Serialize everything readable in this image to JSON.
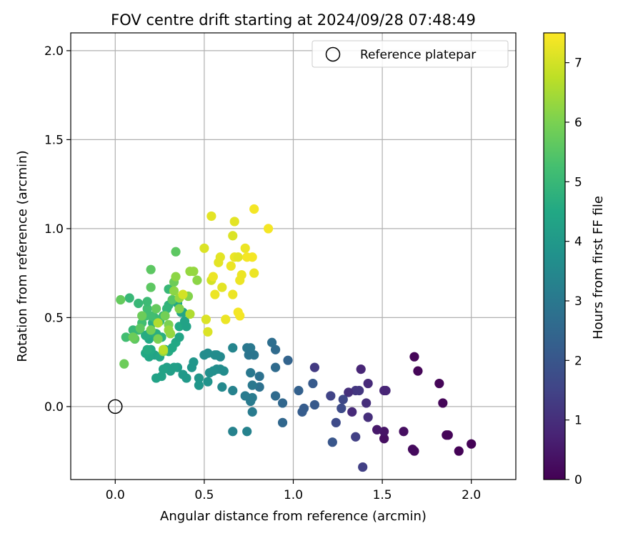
{
  "chart_data": {
    "type": "scatter",
    "title": "FOV centre drift starting at 2024/09/28 07:48:49",
    "xlabel": "Angular distance from reference (arcmin)",
    "ylabel": "Rotation from reference (arcmin)",
    "xlim": [
      -0.25,
      2.25
    ],
    "ylim": [
      -0.41,
      2.1
    ],
    "xticks": [
      "0.0",
      "0.5",
      "1.0",
      "1.5",
      "2.0"
    ],
    "yticks": [
      "0.0",
      "0.5",
      "1.0",
      "1.5",
      "2.0"
    ],
    "grid": true,
    "legend": {
      "position": "top-right",
      "label": "Reference platepar"
    },
    "reference_point": {
      "x": 0.0,
      "y": 0.0
    },
    "colorbar": {
      "label": "Hours from first FF file",
      "min": 0,
      "max": 7.5,
      "ticks": [
        "0",
        "1",
        "2",
        "3",
        "4",
        "5",
        "6",
        "7"
      ],
      "colormap": "viridis"
    },
    "series": [
      {
        "points": [
          {
            "x": 1.68,
            "y": 0.28,
            "h": 0.1
          },
          {
            "x": 1.7,
            "y": 0.2,
            "h": 0.1
          },
          {
            "x": 1.82,
            "y": 0.13,
            "h": 0.1
          },
          {
            "x": 1.84,
            "y": 0.02,
            "h": 0.1
          },
          {
            "x": 2.0,
            "y": -0.21,
            "h": 0.05
          },
          {
            "x": 1.93,
            "y": -0.25,
            "h": 0.05
          },
          {
            "x": 1.87,
            "y": -0.16,
            "h": 0.1
          },
          {
            "x": 1.86,
            "y": -0.16,
            "h": 0.1
          },
          {
            "x": 1.68,
            "y": -0.25,
            "h": 0.2
          },
          {
            "x": 1.67,
            "y": -0.24,
            "h": 0.2
          },
          {
            "x": 1.62,
            "y": -0.14,
            "h": 0.3
          },
          {
            "x": 1.51,
            "y": -0.18,
            "h": 0.3
          },
          {
            "x": 1.51,
            "y": -0.14,
            "h": 0.4
          },
          {
            "x": 1.47,
            "y": -0.13,
            "h": 0.5
          },
          {
            "x": 1.52,
            "y": 0.09,
            "h": 0.8
          },
          {
            "x": 1.51,
            "y": 0.09,
            "h": 0.8
          },
          {
            "x": 1.38,
            "y": 0.21,
            "h": 0.8
          },
          {
            "x": 1.42,
            "y": 0.13,
            "h": 0.9
          },
          {
            "x": 1.41,
            "y": 0.02,
            "h": 1.0
          },
          {
            "x": 1.42,
            "y": -0.06,
            "h": 1.0
          },
          {
            "x": 1.35,
            "y": 0.09,
            "h": 1.2
          },
          {
            "x": 1.37,
            "y": 0.09,
            "h": 1.2
          },
          {
            "x": 1.31,
            "y": 0.08,
            "h": 1.0
          },
          {
            "x": 1.33,
            "y": -0.03,
            "h": 0.9
          },
          {
            "x": 1.39,
            "y": -0.34,
            "h": 1.4
          },
          {
            "x": 1.35,
            "y": -0.17,
            "h": 1.4
          },
          {
            "x": 1.28,
            "y": 0.04,
            "h": 1.6
          },
          {
            "x": 1.27,
            "y": -0.01,
            "h": 1.7
          },
          {
            "x": 1.24,
            "y": -0.09,
            "h": 1.7
          },
          {
            "x": 1.21,
            "y": 0.06,
            "h": 1.5
          },
          {
            "x": 1.12,
            "y": 0.22,
            "h": 1.3
          },
          {
            "x": 1.22,
            "y": -0.2,
            "h": 2.0
          },
          {
            "x": 1.11,
            "y": 0.13,
            "h": 2.1
          },
          {
            "x": 1.12,
            "y": 0.01,
            "h": 2.1
          },
          {
            "x": 1.06,
            "y": -0.01,
            "h": 2.2
          },
          {
            "x": 1.05,
            "y": -0.03,
            "h": 2.2
          },
          {
            "x": 1.03,
            "y": 0.09,
            "h": 2.3
          },
          {
            "x": 0.97,
            "y": 0.26,
            "h": 2.4
          },
          {
            "x": 0.94,
            "y": 0.02,
            "h": 2.5
          },
          {
            "x": 0.94,
            "y": -0.09,
            "h": 2.5
          },
          {
            "x": 0.9,
            "y": 0.22,
            "h": 2.6
          },
          {
            "x": 0.9,
            "y": 0.32,
            "h": 2.6
          },
          {
            "x": 0.88,
            "y": 0.36,
            "h": 2.7
          },
          {
            "x": 0.9,
            "y": 0.06,
            "h": 2.6
          },
          {
            "x": 0.81,
            "y": 0.17,
            "h": 2.8
          },
          {
            "x": 0.81,
            "y": 0.11,
            "h": 2.8
          },
          {
            "x": 0.78,
            "y": 0.29,
            "h": 2.9
          },
          {
            "x": 0.76,
            "y": 0.33,
            "h": 3.0
          },
          {
            "x": 0.74,
            "y": 0.33,
            "h": 3.0
          },
          {
            "x": 0.75,
            "y": 0.29,
            "h": 2.9
          },
          {
            "x": 0.76,
            "y": 0.19,
            "h": 3.0
          },
          {
            "x": 0.77,
            "y": 0.12,
            "h": 3.0
          },
          {
            "x": 0.77,
            "y": 0.05,
            "h": 3.1
          },
          {
            "x": 0.76,
            "y": 0.03,
            "h": 3.1
          },
          {
            "x": 0.73,
            "y": 0.06,
            "h": 3.1
          },
          {
            "x": 0.77,
            "y": -0.03,
            "h": 3.1
          },
          {
            "x": 0.74,
            "y": -0.14,
            "h": 3.3
          },
          {
            "x": 0.66,
            "y": -0.14,
            "h": 3.3
          },
          {
            "x": 0.66,
            "y": 0.09,
            "h": 3.3
          },
          {
            "x": 0.66,
            "y": 0.33,
            "h": 3.4
          },
          {
            "x": 0.6,
            "y": 0.11,
            "h": 3.5
          },
          {
            "x": 0.61,
            "y": 0.2,
            "h": 3.6
          },
          {
            "x": 0.59,
            "y": 0.21,
            "h": 3.6
          },
          {
            "x": 0.59,
            "y": 0.28,
            "h": 3.5
          },
          {
            "x": 0.57,
            "y": 0.21,
            "h": 3.6
          },
          {
            "x": 0.57,
            "y": 0.29,
            "h": 3.6
          },
          {
            "x": 0.56,
            "y": 0.29,
            "h": 3.6
          },
          {
            "x": 0.55,
            "y": 0.2,
            "h": 3.7
          },
          {
            "x": 0.53,
            "y": 0.19,
            "h": 3.7
          },
          {
            "x": 0.52,
            "y": 0.3,
            "h": 3.6
          },
          {
            "x": 0.5,
            "y": 0.29,
            "h": 3.6
          },
          {
            "x": 0.52,
            "y": 0.14,
            "h": 3.8
          },
          {
            "x": 0.47,
            "y": 0.12,
            "h": 3.9
          },
          {
            "x": 0.47,
            "y": 0.16,
            "h": 3.9
          },
          {
            "x": 0.43,
            "y": 0.22,
            "h": 3.9
          },
          {
            "x": 0.44,
            "y": 0.25,
            "h": 3.9
          },
          {
            "x": 0.4,
            "y": 0.16,
            "h": 4.0
          },
          {
            "x": 0.38,
            "y": 0.18,
            "h": 4.0
          },
          {
            "x": 0.35,
            "y": 0.22,
            "h": 4.1
          },
          {
            "x": 0.33,
            "y": 0.22,
            "h": 4.2
          },
          {
            "x": 0.31,
            "y": 0.2,
            "h": 4.2
          },
          {
            "x": 0.29,
            "y": 0.22,
            "h": 4.2
          },
          {
            "x": 0.27,
            "y": 0.21,
            "h": 4.3
          },
          {
            "x": 0.26,
            "y": 0.17,
            "h": 4.3
          },
          {
            "x": 0.23,
            "y": 0.16,
            "h": 4.3
          },
          {
            "x": 0.22,
            "y": 0.29,
            "h": 4.3
          },
          {
            "x": 0.25,
            "y": 0.28,
            "h": 4.4
          },
          {
            "x": 0.19,
            "y": 0.28,
            "h": 4.4
          },
          {
            "x": 0.2,
            "y": 0.32,
            "h": 4.5
          },
          {
            "x": 0.17,
            "y": 0.3,
            "h": 4.5
          },
          {
            "x": 0.18,
            "y": 0.32,
            "h": 4.6
          },
          {
            "x": 0.19,
            "y": 0.38,
            "h": 4.5
          },
          {
            "x": 0.17,
            "y": 0.4,
            "h": 4.6
          },
          {
            "x": 0.19,
            "y": 0.41,
            "h": 4.6
          },
          {
            "x": 0.21,
            "y": 0.47,
            "h": 4.7
          },
          {
            "x": 0.23,
            "y": 0.41,
            "h": 4.7
          },
          {
            "x": 0.26,
            "y": 0.39,
            "h": 4.7
          },
          {
            "x": 0.28,
            "y": 0.32,
            "h": 4.7
          },
          {
            "x": 0.3,
            "y": 0.31,
            "h": 4.6
          },
          {
            "x": 0.32,
            "y": 0.33,
            "h": 4.5
          },
          {
            "x": 0.34,
            "y": 0.36,
            "h": 4.5
          },
          {
            "x": 0.36,
            "y": 0.39,
            "h": 4.4
          },
          {
            "x": 0.36,
            "y": 0.45,
            "h": 4.5
          },
          {
            "x": 0.37,
            "y": 0.53,
            "h": 4.4
          },
          {
            "x": 0.39,
            "y": 0.48,
            "h": 4.3
          },
          {
            "x": 0.4,
            "y": 0.45,
            "h": 4.3
          },
          {
            "x": 0.38,
            "y": 0.53,
            "h": 4.4
          },
          {
            "x": 0.35,
            "y": 0.58,
            "h": 4.5
          },
          {
            "x": 0.3,
            "y": 0.57,
            "h": 4.8
          },
          {
            "x": 0.29,
            "y": 0.55,
            "h": 4.9
          },
          {
            "x": 0.27,
            "y": 0.51,
            "h": 5.0
          },
          {
            "x": 0.25,
            "y": 0.48,
            "h": 5.0
          },
          {
            "x": 0.22,
            "y": 0.5,
            "h": 5.1
          },
          {
            "x": 0.2,
            "y": 0.51,
            "h": 5.2
          },
          {
            "x": 0.17,
            "y": 0.51,
            "h": 5.2
          },
          {
            "x": 0.15,
            "y": 0.47,
            "h": 5.2
          },
          {
            "x": 0.13,
            "y": 0.43,
            "h": 5.1
          },
          {
            "x": 0.13,
            "y": 0.58,
            "h": 5.0
          },
          {
            "x": 0.18,
            "y": 0.55,
            "h": 5.2
          },
          {
            "x": 0.18,
            "y": 0.59,
            "h": 5.1
          },
          {
            "x": 0.08,
            "y": 0.61,
            "h": 5.0
          },
          {
            "x": 0.1,
            "y": 0.43,
            "h": 5.0
          },
          {
            "x": 0.06,
            "y": 0.39,
            "h": 5.2
          },
          {
            "x": 0.1,
            "y": 0.39,
            "h": 5.3
          },
          {
            "x": 0.11,
            "y": 0.38,
            "h": 5.6
          },
          {
            "x": 0.05,
            "y": 0.24,
            "h": 5.8
          },
          {
            "x": 0.03,
            "y": 0.6,
            "h": 5.7
          },
          {
            "x": 0.1,
            "y": 0.39,
            "h": 5.8
          },
          {
            "x": 0.14,
            "y": 0.44,
            "h": 5.6
          },
          {
            "x": 0.15,
            "y": 0.51,
            "h": 5.8
          },
          {
            "x": 0.2,
            "y": 0.43,
            "h": 5.9
          },
          {
            "x": 0.2,
            "y": 0.67,
            "h": 5.6
          },
          {
            "x": 0.2,
            "y": 0.77,
            "h": 5.6
          },
          {
            "x": 0.23,
            "y": 0.55,
            "h": 5.7
          },
          {
            "x": 0.24,
            "y": 0.38,
            "h": 6.0
          },
          {
            "x": 0.27,
            "y": 0.31,
            "h": 6.3
          },
          {
            "x": 0.28,
            "y": 0.51,
            "h": 5.9
          },
          {
            "x": 0.3,
            "y": 0.46,
            "h": 6.0
          },
          {
            "x": 0.3,
            "y": 0.43,
            "h": 6.3
          },
          {
            "x": 0.31,
            "y": 0.41,
            "h": 6.3
          },
          {
            "x": 0.3,
            "y": 0.66,
            "h": 5.0
          },
          {
            "x": 0.32,
            "y": 0.6,
            "h": 5.5
          },
          {
            "x": 0.33,
            "y": 0.7,
            "h": 5.8
          },
          {
            "x": 0.34,
            "y": 0.87,
            "h": 5.6
          },
          {
            "x": 0.33,
            "y": 0.65,
            "h": 6.2
          },
          {
            "x": 0.34,
            "y": 0.73,
            "h": 6.2
          },
          {
            "x": 0.36,
            "y": 0.61,
            "h": 6.3
          },
          {
            "x": 0.36,
            "y": 0.55,
            "h": 6.1
          },
          {
            "x": 0.41,
            "y": 0.62,
            "h": 6.1
          },
          {
            "x": 0.42,
            "y": 0.76,
            "h": 6.3
          },
          {
            "x": 0.44,
            "y": 0.76,
            "h": 6.3
          },
          {
            "x": 0.46,
            "y": 0.71,
            "h": 6.2
          },
          {
            "x": 0.42,
            "y": 0.52,
            "h": 6.6
          },
          {
            "x": 0.38,
            "y": 0.63,
            "h": 7.0
          },
          {
            "x": 0.24,
            "y": 0.47,
            "h": 6.6
          },
          {
            "x": 0.27,
            "y": 0.32,
            "h": 6.7
          },
          {
            "x": 0.5,
            "y": 0.89,
            "h": 7.1
          },
          {
            "x": 0.51,
            "y": 0.49,
            "h": 7.1
          },
          {
            "x": 0.52,
            "y": 0.42,
            "h": 7.1
          },
          {
            "x": 0.54,
            "y": 0.71,
            "h": 7.0
          },
          {
            "x": 0.54,
            "y": 1.07,
            "h": 7.2
          },
          {
            "x": 0.56,
            "y": 0.63,
            "h": 7.3
          },
          {
            "x": 0.55,
            "y": 0.73,
            "h": 7.3
          },
          {
            "x": 0.58,
            "y": 0.81,
            "h": 7.2
          },
          {
            "x": 0.59,
            "y": 0.84,
            "h": 7.2
          },
          {
            "x": 0.6,
            "y": 0.67,
            "h": 7.2
          },
          {
            "x": 0.62,
            "y": 0.49,
            "h": 7.3
          },
          {
            "x": 0.65,
            "y": 0.79,
            "h": 7.3
          },
          {
            "x": 0.66,
            "y": 0.63,
            "h": 7.3
          },
          {
            "x": 0.67,
            "y": 0.84,
            "h": 7.3
          },
          {
            "x": 0.66,
            "y": 0.96,
            "h": 7.1
          },
          {
            "x": 0.67,
            "y": 1.04,
            "h": 7.2
          },
          {
            "x": 0.69,
            "y": 0.84,
            "h": 7.2
          },
          {
            "x": 0.7,
            "y": 0.71,
            "h": 7.3
          },
          {
            "x": 0.71,
            "y": 0.74,
            "h": 7.3
          },
          {
            "x": 0.69,
            "y": 0.53,
            "h": 7.4
          },
          {
            "x": 0.7,
            "y": 0.51,
            "h": 7.4
          },
          {
            "x": 0.73,
            "y": 0.89,
            "h": 7.3
          },
          {
            "x": 0.74,
            "y": 0.84,
            "h": 7.4
          },
          {
            "x": 0.77,
            "y": 0.84,
            "h": 7.4
          },
          {
            "x": 0.78,
            "y": 0.75,
            "h": 7.3
          },
          {
            "x": 0.78,
            "y": 1.11,
            "h": 7.4
          },
          {
            "x": 0.86,
            "y": 1.0,
            "h": 7.4
          }
        ]
      }
    ]
  }
}
